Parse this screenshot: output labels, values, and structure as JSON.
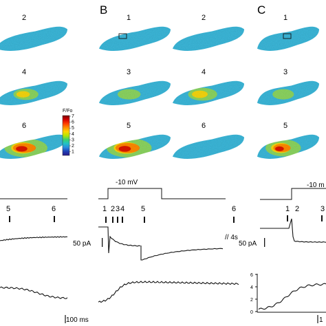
{
  "panels": {
    "A": {
      "letter": "",
      "frames": [
        {
          "label": "2",
          "heat": 0.15
        },
        {
          "label": "4",
          "heat": 0.35
        },
        {
          "label": "6",
          "heat": 0.8
        }
      ],
      "marker_labels": [
        "5",
        "6"
      ]
    },
    "B": {
      "letter": "B",
      "frames": [
        {
          "label": "1",
          "heat": 0.05,
          "roi": true
        },
        {
          "label": "2",
          "heat": 0.1
        },
        {
          "label": "3",
          "heat": 0.3
        },
        {
          "label": "4",
          "heat": 0.45
        },
        {
          "label": "5",
          "heat": 0.85
        },
        {
          "label": "6",
          "heat": 0.1
        }
      ],
      "step_label": "-10 mV",
      "marker_labels": [
        "1",
        "2",
        "3",
        "4",
        "5",
        "6"
      ],
      "break_label": "// 4s",
      "current_scale": "50 pA"
    },
    "C": {
      "letter": "C",
      "frames": [
        {
          "label": "1",
          "heat": 0.05,
          "roi": true
        },
        {
          "label": "3",
          "heat": 0.3
        },
        {
          "label": "5",
          "heat": 0.7
        }
      ],
      "step_label": "-10 m",
      "marker_labels": [
        "1",
        "2",
        "3"
      ],
      "current_scale": "50 pA",
      "ratio_ticks": [
        "6",
        "4",
        "2",
        "0"
      ]
    }
  },
  "colorbar": {
    "title": "F/Fo",
    "ticks": [
      "7",
      "6",
      "5",
      "4",
      "3",
      "2",
      "1"
    ],
    "colors": [
      "#7a0000",
      "#d40000",
      "#ff3b00",
      "#ff8c00",
      "#ffd400",
      "#b8e600",
      "#3fd16a",
      "#22c4c4",
      "#2a8ce0",
      "#1f3fb5",
      "#2a1a8a"
    ]
  },
  "time_scale": "100 ms",
  "colors": {
    "cell_base": "#3bb6d8",
    "trace": "#111111"
  }
}
